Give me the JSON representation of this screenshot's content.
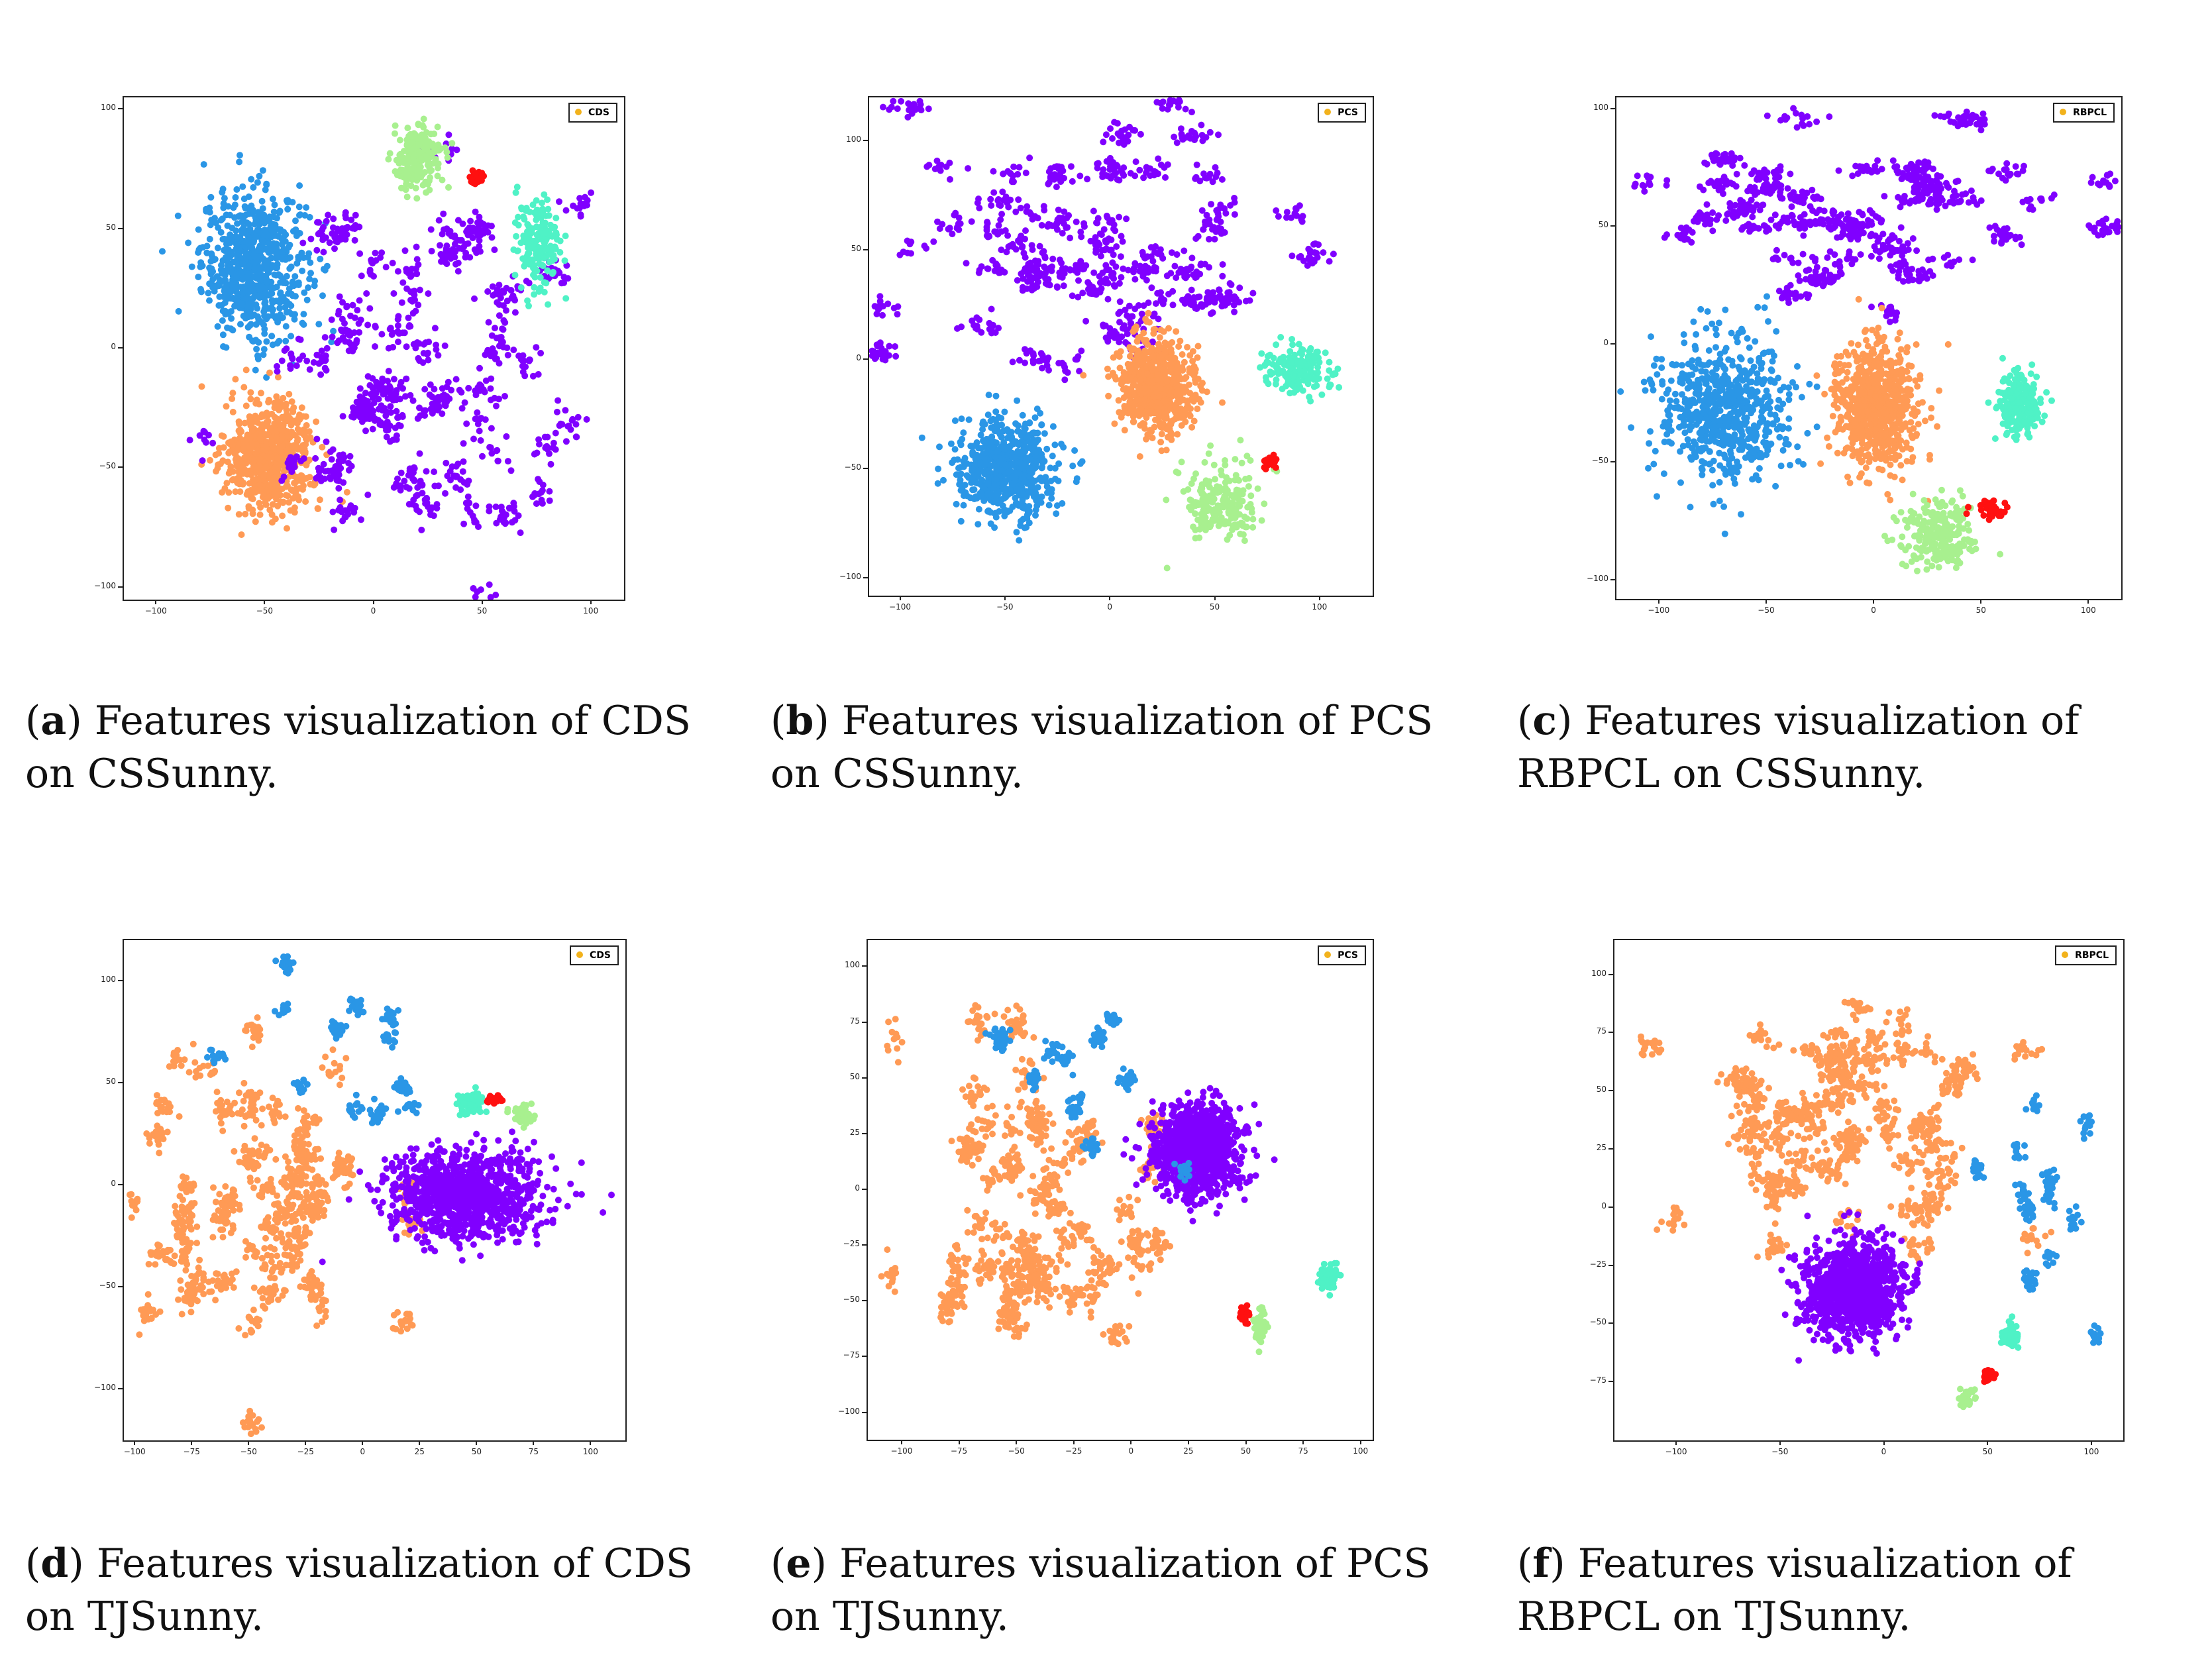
{
  "colors": {
    "purple": "#8000ff",
    "blue": "#2a96e6",
    "orange": "#ff9a55",
    "green": "#a8f08f",
    "cyan": "#4ff2c6",
    "red": "#ff1010",
    "legend_dot": "#f2b21c"
  },
  "panels": [
    {
      "id": "a",
      "letter": "a",
      "caption": "Features visualization of CDS on CSSunny.",
      "legend": "CDS"
    },
    {
      "id": "b",
      "letter": "b",
      "caption": "Features visualization of PCS on CSSunny.",
      "legend": "PCS"
    },
    {
      "id": "c",
      "letter": "c",
      "caption": "Features visualization of RBPCL on CSSunny.",
      "legend": "RBPCL"
    },
    {
      "id": "d",
      "letter": "d",
      "caption": "Features visualization of CDS on TJSunny.",
      "legend": "CDS"
    },
    {
      "id": "e",
      "letter": "e",
      "caption": "Features visualization of PCS on TJSunny.",
      "legend": "PCS"
    },
    {
      "id": "f",
      "letter": "f",
      "caption": "Features visualization of RBPCL on TJSunny.",
      "legend": "RBPCL"
    }
  ],
  "chart_data": [
    {
      "type": "scatter",
      "title": "",
      "legend": [
        "CDS"
      ],
      "xlim": [
        -115,
        115
      ],
      "ylim": [
        -105,
        105
      ],
      "xticks": [
        -100,
        -50,
        0,
        50,
        100
      ],
      "yticks": [
        -100,
        -50,
        0,
        50,
        100
      ],
      "xtick_labels": [
        "−100",
        "−50",
        "0",
        "50",
        "100"
      ],
      "ytick_labels": [
        "−100",
        "−50",
        "0",
        "50",
        "100"
      ],
      "clusters": [
        {
          "color": "blue",
          "cx": -55,
          "cy": 35,
          "sx": 22,
          "sy": 28,
          "n": 700
        },
        {
          "color": "orange",
          "cx": -48,
          "cy": -45,
          "sx": 18,
          "sy": 20,
          "n": 700
        },
        {
          "color": "purple",
          "cx": 30,
          "cy": -10,
          "sx": 48,
          "sy": 45,
          "n": 900,
          "clumpy": true
        },
        {
          "color": "green",
          "cx": 20,
          "cy": 80,
          "sx": 10,
          "sy": 12,
          "n": 200
        },
        {
          "color": "cyan",
          "cx": 75,
          "cy": 45,
          "sx": 10,
          "sy": 14,
          "n": 180
        },
        {
          "color": "red",
          "cx": 47,
          "cy": 72,
          "sx": 3,
          "sy": 3,
          "n": 30
        }
      ]
    },
    {
      "type": "scatter",
      "title": "",
      "legend": [
        "PCS"
      ],
      "xlim": [
        -115,
        125
      ],
      "ylim": [
        -108,
        120
      ],
      "xticks": [
        -100,
        -50,
        0,
        50,
        100
      ],
      "yticks": [
        -100,
        -50,
        0,
        50,
        100
      ],
      "xtick_labels": [
        "−100",
        "−50",
        "0",
        "50",
        "100"
      ],
      "ytick_labels": [
        "−100",
        "−50",
        "0",
        "50",
        "100"
      ],
      "clusters": [
        {
          "color": "purple",
          "cx": 0,
          "cy": 55,
          "sx": 60,
          "sy": 32,
          "n": 900,
          "clumpy": true
        },
        {
          "color": "blue",
          "cx": -50,
          "cy": -50,
          "sx": 22,
          "sy": 22,
          "n": 650
        },
        {
          "color": "orange",
          "cx": 22,
          "cy": -12,
          "sx": 16,
          "sy": 20,
          "n": 650
        },
        {
          "color": "green",
          "cx": 52,
          "cy": -65,
          "sx": 16,
          "sy": 15,
          "n": 220
        },
        {
          "color": "cyan",
          "cx": 90,
          "cy": -5,
          "sx": 15,
          "sy": 10,
          "n": 180
        },
        {
          "color": "red",
          "cx": 76,
          "cy": -47,
          "sx": 3,
          "sy": 2,
          "n": 30
        }
      ]
    },
    {
      "type": "scatter",
      "title": "",
      "legend": [
        "RBPCL"
      ],
      "xlim": [
        -120,
        115
      ],
      "ylim": [
        -108,
        105
      ],
      "xticks": [
        -100,
        -50,
        0,
        50,
        100
      ],
      "yticks": [
        -100,
        -50,
        0,
        50,
        100
      ],
      "xtick_labels": [
        "−100",
        "−50",
        "0",
        "50",
        "100"
      ],
      "ytick_labels": [
        "−100",
        "−50",
        "0",
        "50",
        "100"
      ],
      "clusters": [
        {
          "color": "purple",
          "cx": -5,
          "cy": 60,
          "sx": 60,
          "sy": 22,
          "n": 900,
          "clumpy": true
        },
        {
          "color": "blue",
          "cx": -70,
          "cy": -28,
          "sx": 28,
          "sy": 28,
          "n": 650
        },
        {
          "color": "orange",
          "cx": 0,
          "cy": -25,
          "sx": 18,
          "sy": 24,
          "n": 700
        },
        {
          "color": "cyan",
          "cx": 68,
          "cy": -25,
          "sx": 9,
          "sy": 12,
          "n": 220
        },
        {
          "color": "green",
          "cx": 30,
          "cy": -80,
          "sx": 16,
          "sy": 13,
          "n": 230
        },
        {
          "color": "red",
          "cx": 55,
          "cy": -70,
          "sx": 10,
          "sy": 4,
          "n": 35
        }
      ]
    },
    {
      "type": "scatter",
      "title": "",
      "legend": [
        "CDS"
      ],
      "xlim": [
        -105,
        115
      ],
      "ylim": [
        -125,
        120
      ],
      "xticks": [
        -100,
        -75,
        -50,
        -25,
        0,
        25,
        50,
        75,
        100
      ],
      "yticks": [
        -100,
        -50,
        0,
        50,
        100
      ],
      "xtick_labels": [
        "−100",
        "−75",
        "−50",
        "−25",
        "0",
        "25",
        "50",
        "75",
        "100"
      ],
      "ytick_labels": [
        "−100",
        "−50",
        "0",
        "50",
        "100"
      ],
      "clusters": [
        {
          "color": "orange",
          "cx": -45,
          "cy": -10,
          "sx": 32,
          "sy": 48,
          "n": 1000,
          "clumpy": true
        },
        {
          "color": "purple",
          "cx": 45,
          "cy": -5,
          "sx": 30,
          "sy": 20,
          "n": 1000
        },
        {
          "color": "blue",
          "cx": -10,
          "cy": 65,
          "sx": 25,
          "sy": 28,
          "n": 200,
          "clumpy": true
        },
        {
          "color": "cyan",
          "cx": 47,
          "cy": 40,
          "sx": 5,
          "sy": 5,
          "n": 60
        },
        {
          "color": "green",
          "cx": 70,
          "cy": 35,
          "sx": 4,
          "sy": 5,
          "n": 50
        },
        {
          "color": "red",
          "cx": 58,
          "cy": 42,
          "sx": 4,
          "sy": 2,
          "n": 25
        }
      ]
    },
    {
      "type": "scatter",
      "title": "",
      "legend": [
        "PCS"
      ],
      "xlim": [
        -115,
        105
      ],
      "ylim": [
        -112,
        112
      ],
      "xticks": [
        -100,
        -75,
        -50,
        -25,
        0,
        25,
        50,
        75,
        100
      ],
      "yticks": [
        -100,
        -75,
        -50,
        -25,
        0,
        25,
        50,
        75,
        100
      ],
      "xtick_labels": [
        "−100",
        "−75",
        "−50",
        "−25",
        "0",
        "25",
        "50",
        "75",
        "100"
      ],
      "ytick_labels": [
        "−100",
        "−75",
        "−50",
        "−25",
        "0",
        "25",
        "50",
        "75",
        "100"
      ],
      "clusters": [
        {
          "color": "orange",
          "cx": -45,
          "cy": -5,
          "sx": 32,
          "sy": 45,
          "n": 1000,
          "clumpy": true
        },
        {
          "color": "purple",
          "cx": 28,
          "cy": 18,
          "sx": 17,
          "sy": 18,
          "n": 1100
        },
        {
          "color": "blue",
          "cx": -15,
          "cy": 55,
          "sx": 22,
          "sy": 25,
          "n": 220,
          "clumpy": true
        },
        {
          "color": "cyan",
          "cx": 86,
          "cy": -40,
          "sx": 4,
          "sy": 6,
          "n": 60
        },
        {
          "color": "green",
          "cx": 56,
          "cy": -62,
          "sx": 3,
          "sy": 7,
          "n": 50
        },
        {
          "color": "red",
          "cx": 49,
          "cy": -56,
          "sx": 2,
          "sy": 3,
          "n": 25
        }
      ]
    },
    {
      "type": "scatter",
      "title": "",
      "legend": [
        "RBPCL"
      ],
      "xlim": [
        -130,
        115
      ],
      "ylim": [
        -100,
        115
      ],
      "xticks": [
        -100,
        -50,
        0,
        50,
        100
      ],
      "yticks": [
        -75,
        -50,
        -25,
        0,
        25,
        50,
        75,
        100
      ],
      "xtick_labels": [
        "−100",
        "−50",
        "0",
        "50",
        "100"
      ],
      "ytick_labels": [
        "−75",
        "−50",
        "−25",
        "0",
        "25",
        "50",
        "75",
        "100"
      ],
      "clusters": [
        {
          "color": "orange",
          "cx": -20,
          "cy": 35,
          "sx": 45,
          "sy": 35,
          "n": 1100,
          "clumpy": true
        },
        {
          "color": "purple",
          "cx": -15,
          "cy": -35,
          "sx": 21,
          "sy": 18,
          "n": 1100
        },
        {
          "color": "blue",
          "cx": 75,
          "cy": 0,
          "sx": 20,
          "sy": 30,
          "n": 200,
          "clumpy": true
        },
        {
          "color": "cyan",
          "cx": 60,
          "cy": -55,
          "sx": 4,
          "sy": 5,
          "n": 60
        },
        {
          "color": "green",
          "cx": 40,
          "cy": -82,
          "sx": 3,
          "sy": 4,
          "n": 45
        },
        {
          "color": "red",
          "cx": 50,
          "cy": -72,
          "sx": 3,
          "sy": 2,
          "n": 25
        }
      ]
    }
  ]
}
